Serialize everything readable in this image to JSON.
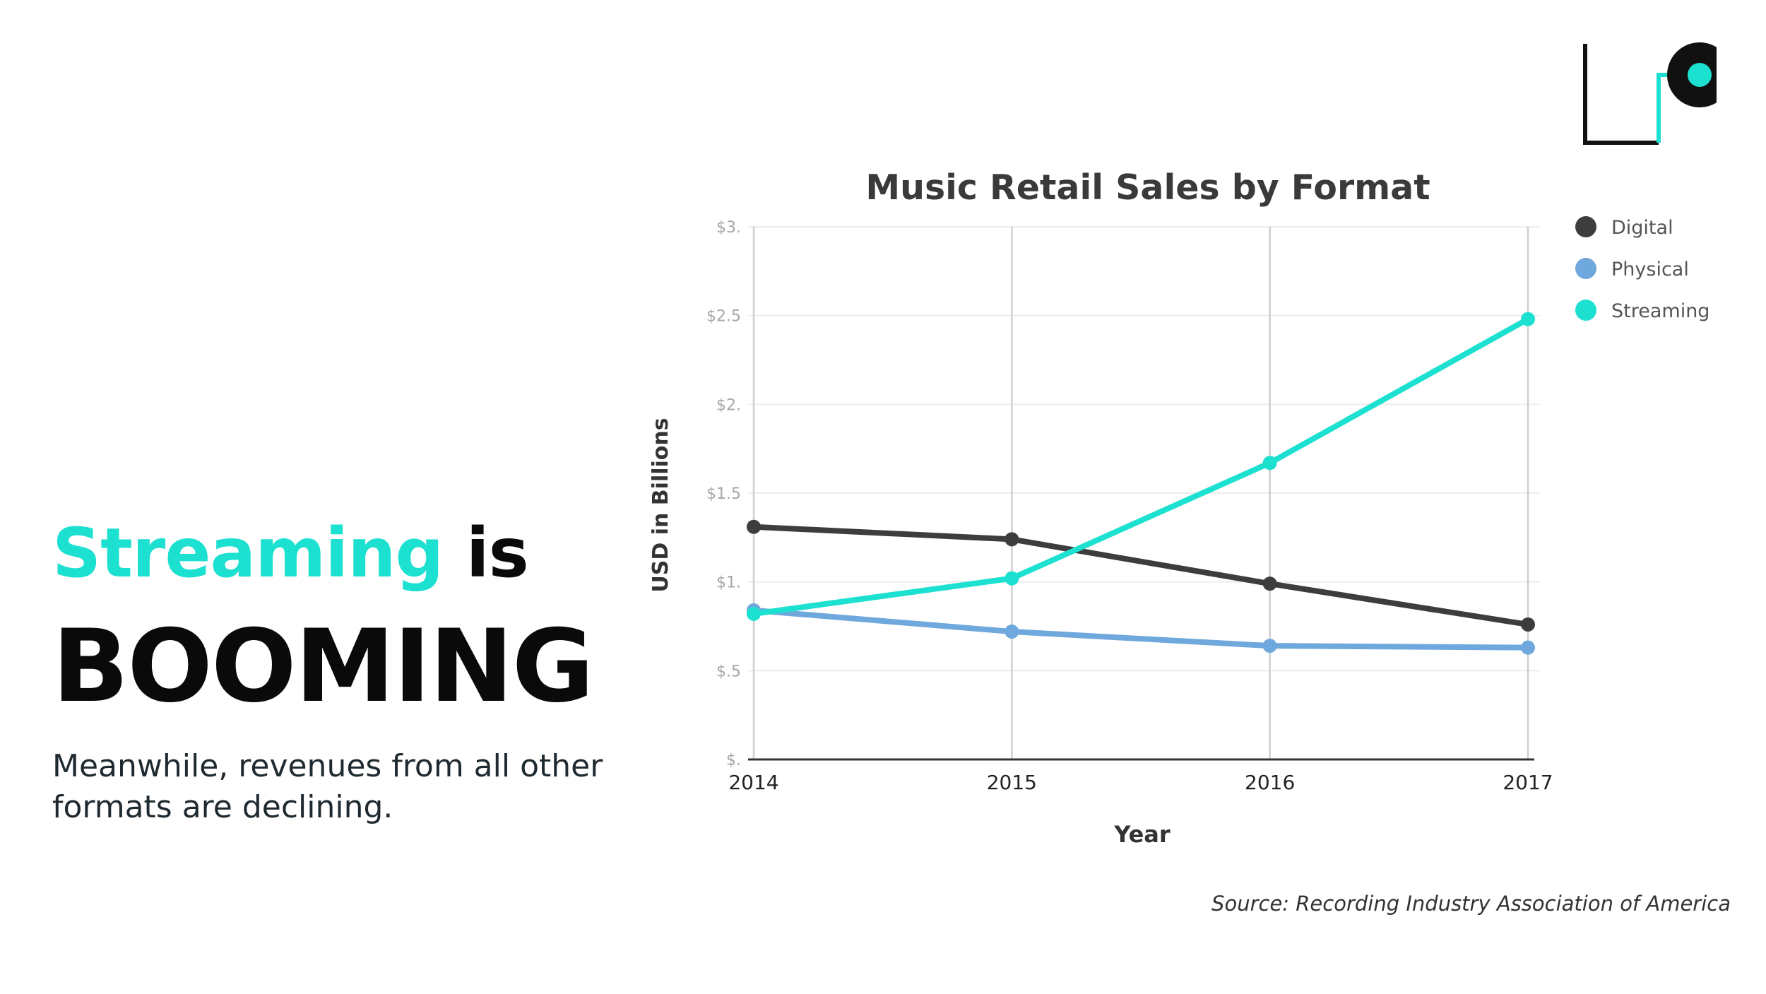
{
  "headline": {
    "accent_word": "Streaming",
    "rest_of_line": "is",
    "big_word": "BOOMING"
  },
  "subtext": "Meanwhile, revenues from all other formats are declining.",
  "source": "Source: Recording Industry Association of America",
  "logo": {
    "icon": "bracket-dot-logo-icon",
    "colors": {
      "frame": "#111111",
      "accent": "#1ce0d0"
    }
  },
  "chart_data": {
    "type": "line",
    "title": "Music Retail Sales by Format",
    "xlabel": "Year",
    "ylabel": "USD in Billions",
    "categories": [
      "2014",
      "2015",
      "2016",
      "2017"
    ],
    "y_ticks": [
      0,
      0.5,
      1,
      1.5,
      2,
      2.5,
      3
    ],
    "y_tick_labels": [
      "$.",
      "$.5",
      "$1.",
      "$1.5",
      "$2.",
      "$2.5",
      "$3."
    ],
    "ylim": [
      0,
      3
    ],
    "grid": true,
    "legend_position": "right",
    "series": [
      {
        "name": "Digital",
        "color": "#3d3d3d",
        "values": [
          1.31,
          1.24,
          0.99,
          0.76
        ]
      },
      {
        "name": "Physical",
        "color": "#6fa8dc",
        "values": [
          0.84,
          0.72,
          0.64,
          0.63
        ]
      },
      {
        "name": "Streaming",
        "color": "#1ce0d0",
        "values": [
          0.82,
          1.02,
          1.67,
          2.48
        ]
      }
    ]
  }
}
